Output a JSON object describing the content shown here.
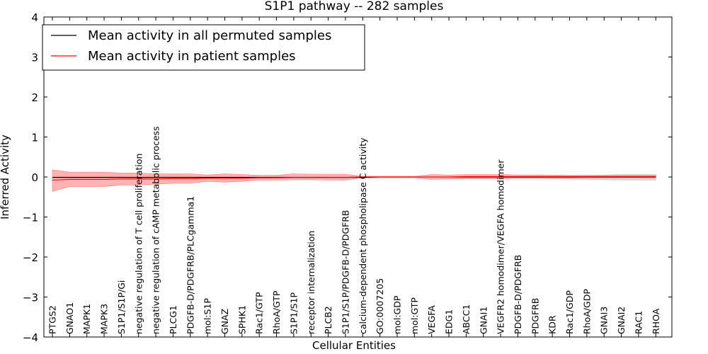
{
  "chart_data": {
    "type": "line",
    "title": "S1P1 pathway -- 282 samples",
    "xlabel": "Cellular Entities",
    "ylabel": "Inferred Activity",
    "ylim": [
      -4,
      4
    ],
    "yticks": [
      -4,
      -3,
      -2,
      -1,
      0,
      1,
      2,
      3,
      4
    ],
    "ytick_labels": [
      "−4",
      "−3",
      "−2",
      "−1",
      "0",
      "1",
      "2",
      "3",
      "4"
    ],
    "legend_position": "top-left",
    "categories": [
      "PTGS2",
      "GNAO1",
      "MAPK1",
      "MAPK3",
      "S1P1/S1P/Gi",
      "negative regulation of T cell proliferation",
      "negative regulation of cAMP metabolic process",
      "PLCG1",
      "PDGFB-D/PDGFRB/PLCgamma1",
      "mol:S1P",
      "GNAZ",
      "SPHK1",
      "Rac1/GTP",
      "RhoA/GTP",
      "S1P1/S1P",
      "receptor internalization",
      "PLCB2",
      "S1P1/S1P/PDGFB-D/PDGFRB",
      "calcium-dependent phospholipase C activity",
      "GO:0007205",
      "mol:GDP",
      "mol:GTP",
      "VEGFA",
      "EDG1",
      "ABCC1",
      "GNAI1",
      "VEGFR2 homodimer/VEGFA homodimer",
      "PDGFB-D/PDGFRB",
      "PDGFRB",
      "KDR",
      "Rac1/GDP",
      "RhoA/GDP",
      "GNAI3",
      "GNAI2",
      "RAC1",
      "RHOA"
    ],
    "series": [
      {
        "name": "Mean activity in all permuted samples",
        "color": "#000000",
        "values": [
          -0.01,
          -0.01,
          -0.01,
          -0.01,
          -0.01,
          -0.01,
          -0.01,
          -0.01,
          -0.01,
          -0.01,
          -0.01,
          -0.01,
          -0.01,
          -0.01,
          -0.01,
          -0.01,
          -0.01,
          -0.01,
          -0.01,
          0.0,
          0.0,
          0.0,
          0.0,
          0.0,
          0.0,
          0.0,
          0.0,
          0.0,
          0.0,
          0.0,
          0.0,
          0.0,
          0.0,
          0.0,
          0.0,
          0.0
        ],
        "band_lower": [
          -0.03,
          -0.03,
          -0.03,
          -0.03,
          -0.03,
          -0.03,
          -0.03,
          -0.03,
          -0.03,
          -0.03,
          -0.03,
          -0.03,
          -0.03,
          -0.03,
          -0.03,
          -0.03,
          -0.03,
          -0.03,
          -0.03,
          -0.02,
          -0.02,
          -0.02,
          -0.02,
          -0.02,
          -0.03,
          -0.03,
          -0.03,
          -0.03,
          -0.03,
          -0.04,
          -0.05,
          -0.06,
          -0.07,
          -0.08,
          -0.08,
          -0.08
        ],
        "band_upper": [
          0.02,
          0.02,
          0.02,
          0.02,
          0.02,
          0.02,
          0.02,
          0.02,
          0.02,
          0.02,
          0.02,
          0.02,
          0.02,
          0.02,
          0.02,
          0.02,
          0.02,
          0.02,
          0.02,
          0.01,
          0.01,
          0.01,
          0.01,
          0.01,
          0.02,
          0.02,
          0.02,
          0.02,
          0.02,
          0.02,
          0.03,
          0.04,
          0.05,
          0.06,
          0.06,
          0.06
        ],
        "band_color": "#c8c8c8"
      },
      {
        "name": "Mean activity in patient samples",
        "color": "#ff0000",
        "values": [
          -0.08,
          -0.06,
          -0.06,
          -0.06,
          -0.05,
          -0.05,
          -0.05,
          -0.04,
          -0.04,
          -0.03,
          -0.03,
          -0.03,
          -0.02,
          -0.02,
          -0.01,
          -0.01,
          -0.01,
          -0.01,
          0.0,
          0.0,
          0.0,
          0.0,
          0.0,
          0.0,
          0.01,
          0.01,
          0.01,
          0.01,
          0.01,
          0.01,
          0.01,
          0.01,
          0.01,
          0.01,
          0.01,
          0.01
        ],
        "band_lower": [
          -0.36,
          -0.24,
          -0.24,
          -0.24,
          -0.2,
          -0.2,
          -0.18,
          -0.16,
          -0.16,
          -0.11,
          -0.13,
          -0.11,
          -0.08,
          -0.08,
          -0.07,
          -0.07,
          -0.08,
          -0.08,
          -0.02,
          -0.02,
          -0.02,
          -0.02,
          -0.06,
          -0.05,
          -0.04,
          -0.04,
          -0.04,
          -0.03,
          -0.03,
          -0.03,
          -0.03,
          -0.02,
          -0.02,
          -0.02,
          -0.02,
          -0.02
        ],
        "band_upper": [
          0.18,
          0.12,
          0.12,
          0.12,
          0.1,
          0.1,
          0.08,
          0.08,
          0.08,
          0.05,
          0.08,
          0.06,
          0.04,
          0.04,
          0.08,
          0.07,
          0.07,
          0.07,
          0.02,
          0.02,
          0.02,
          0.02,
          0.06,
          0.05,
          0.06,
          0.06,
          0.06,
          0.05,
          0.05,
          0.05,
          0.04,
          0.04,
          0.04,
          0.04,
          0.04,
          0.04
        ],
        "band_color": "#ff8080"
      }
    ]
  }
}
